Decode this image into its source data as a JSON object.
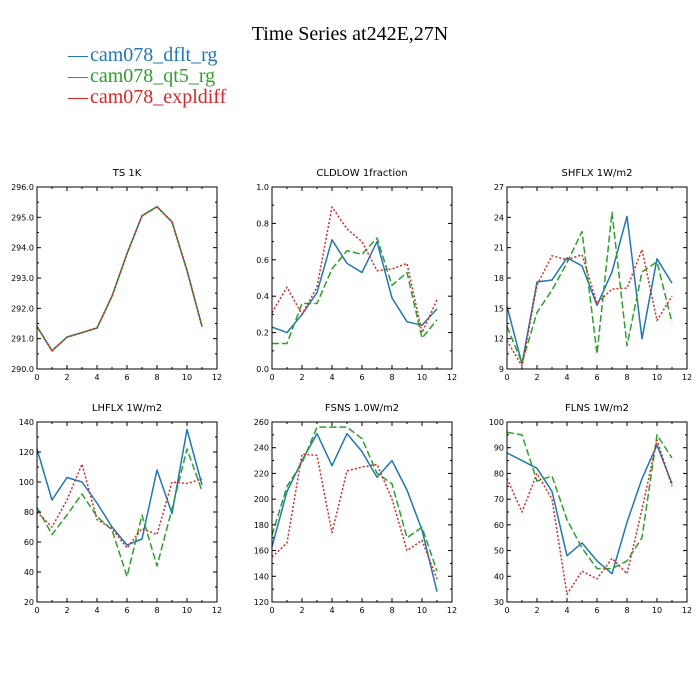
{
  "page": {
    "title": "Time Series at242E,27N",
    "legend": [
      {
        "dash": "—",
        "label": "cam078_dflt_rg",
        "color": "#1f77b4"
      },
      {
        "dash": "—",
        "label": "cam078_qt5_rg",
        "color": "#2ca02c"
      },
      {
        "dash": "—",
        "label": "cam078_expldiff",
        "color": "#d62728"
      }
    ]
  },
  "chart_data": [
    {
      "type": "line",
      "title": "TS   1K",
      "xlim": [
        0,
        12
      ],
      "ylim": [
        290,
        296
      ],
      "xticks": [
        0,
        2,
        4,
        6,
        8,
        10,
        12
      ],
      "yticks": [
        290,
        291,
        292,
        293,
        294,
        295,
        296
      ],
      "ytick_labels": [
        "290.0",
        "291.0",
        "292.0",
        "293.0",
        "294.0",
        "295.0",
        "296.0"
      ],
      "grid": false,
      "x": [
        0,
        1,
        2,
        3,
        4,
        5,
        6,
        7,
        8,
        9,
        10,
        11
      ],
      "series": [
        {
          "name": "cam078_dflt_rg",
          "color": "#1f77b4",
          "dash": "solid",
          "values": [
            291.4,
            290.6,
            291.05,
            291.2,
            291.35,
            292.4,
            293.8,
            295.05,
            295.35,
            294.85,
            293.25,
            291.4
          ]
        },
        {
          "name": "cam078_qt5_rg",
          "color": "#2ca02c",
          "dash": "longdash",
          "values": [
            291.4,
            290.6,
            291.05,
            291.2,
            291.35,
            292.4,
            293.8,
            295.05,
            295.35,
            294.85,
            293.25,
            291.4
          ]
        },
        {
          "name": "cam078_expldiff",
          "color": "#d62728",
          "dash": "dotted",
          "values": [
            291.4,
            290.6,
            291.05,
            291.2,
            291.35,
            292.4,
            293.8,
            295.05,
            295.35,
            294.85,
            293.25,
            291.4
          ]
        }
      ]
    },
    {
      "type": "line",
      "title": "CLDLOW   1fraction",
      "xlim": [
        0,
        12
      ],
      "ylim": [
        0,
        1
      ],
      "xticks": [
        0,
        2,
        4,
        6,
        8,
        10,
        12
      ],
      "yticks": [
        0,
        0.2,
        0.4,
        0.6,
        0.8,
        1.0
      ],
      "ytick_labels": [
        "0.0",
        "0.2",
        "0.4",
        "0.6",
        "0.8",
        "1.0"
      ],
      "grid": false,
      "x": [
        0,
        1,
        2,
        3,
        4,
        5,
        6,
        7,
        8,
        9,
        10,
        11
      ],
      "series": [
        {
          "name": "cam078_dflt_rg",
          "color": "#1f77b4",
          "dash": "solid",
          "values": [
            0.23,
            0.2,
            0.3,
            0.42,
            0.71,
            0.58,
            0.53,
            0.7,
            0.39,
            0.26,
            0.24,
            0.33
          ]
        },
        {
          "name": "cam078_qt5_rg",
          "color": "#2ca02c",
          "dash": "longdash",
          "values": [
            0.14,
            0.14,
            0.36,
            0.36,
            0.55,
            0.65,
            0.63,
            0.72,
            0.46,
            0.53,
            0.17,
            0.27
          ]
        },
        {
          "name": "cam078_expldiff",
          "color": "#d62728",
          "dash": "dotted",
          "values": [
            0.31,
            0.45,
            0.3,
            0.45,
            0.89,
            0.77,
            0.7,
            0.54,
            0.55,
            0.58,
            0.2,
            0.38
          ]
        }
      ]
    },
    {
      "type": "line",
      "title": "SHFLX   1W/m2",
      "xlim": [
        0,
        12
      ],
      "ylim": [
        9,
        27
      ],
      "xticks": [
        0,
        2,
        4,
        6,
        8,
        10,
        12
      ],
      "yticks": [
        9,
        12,
        15,
        18,
        21,
        24,
        27
      ],
      "ytick_labels": [
        "9",
        "12",
        "15",
        "18",
        "21",
        "24",
        "27"
      ],
      "grid": false,
      "x": [
        0,
        1,
        2,
        3,
        4,
        5,
        6,
        7,
        8,
        9,
        10,
        11
      ],
      "series": [
        {
          "name": "cam078_dflt_rg",
          "color": "#1f77b4",
          "dash": "solid",
          "values": [
            15.2,
            9.5,
            17.6,
            17.8,
            20.0,
            19.2,
            15.3,
            18.6,
            24.1,
            12.0,
            19.9,
            17.5
          ]
        },
        {
          "name": "cam078_qt5_rg",
          "color": "#2ca02c",
          "dash": "longdash",
          "values": [
            13.2,
            9.6,
            14.6,
            16.8,
            19.5,
            22.6,
            10.5,
            24.5,
            11.3,
            18.6,
            19.6,
            13.6
          ]
        },
        {
          "name": "cam078_expldiff",
          "color": "#d62728",
          "dash": "dotted",
          "values": [
            11.8,
            9.3,
            17.3,
            20.2,
            19.8,
            20.3,
            15.5,
            16.9,
            17.0,
            20.8,
            13.8,
            16.2
          ]
        }
      ]
    },
    {
      "type": "line",
      "title": "LHFLX   1W/m2",
      "xlim": [
        0,
        12
      ],
      "ylim": [
        20,
        140
      ],
      "xticks": [
        0,
        2,
        4,
        6,
        8,
        10,
        12
      ],
      "yticks": [
        20,
        40,
        60,
        80,
        100,
        120,
        140
      ],
      "ytick_labels": [
        "20",
        "40",
        "60",
        "80",
        "100",
        "120",
        "140"
      ],
      "grid": false,
      "x": [
        0,
        1,
        2,
        3,
        4,
        5,
        6,
        7,
        8,
        9,
        10,
        11
      ],
      "series": [
        {
          "name": "cam078_dflt_rg",
          "color": "#1f77b4",
          "dash": "solid",
          "values": [
            122,
            88,
            103,
            100,
            86,
            70,
            58,
            62,
            108,
            79,
            135,
            98
          ]
        },
        {
          "name": "cam078_qt5_rg",
          "color": "#2ca02c",
          "dash": "longdash",
          "values": [
            83,
            65,
            78,
            92,
            77,
            68,
            37,
            78,
            44,
            82,
            122,
            94
          ]
        },
        {
          "name": "cam078_expldiff",
          "color": "#d62728",
          "dash": "dotted",
          "values": [
            80,
            70,
            88,
            112,
            75,
            69,
            56,
            69,
            65,
            100,
            99,
            102
          ]
        }
      ]
    },
    {
      "type": "line",
      "title": "FSNS   1.0W/m2",
      "xlim": [
        0,
        12
      ],
      "ylim": [
        120,
        260
      ],
      "xticks": [
        0,
        2,
        4,
        6,
        8,
        10,
        12
      ],
      "yticks": [
        120,
        140,
        160,
        180,
        200,
        220,
        240,
        260
      ],
      "ytick_labels": [
        "120",
        "140",
        "160",
        "180",
        "200",
        "220",
        "240",
        "260"
      ],
      "grid": false,
      "x": [
        0,
        1,
        2,
        3,
        4,
        5,
        6,
        7,
        8,
        9,
        10,
        11
      ],
      "series": [
        {
          "name": "cam078_dflt_rg",
          "color": "#1f77b4",
          "dash": "solid",
          "values": [
            163,
            206,
            230,
            251,
            226,
            251,
            237,
            217,
            230,
            207,
            176,
            128
          ]
        },
        {
          "name": "cam078_qt5_rg",
          "color": "#2ca02c",
          "dash": "longdash",
          "values": [
            172,
            210,
            228,
            256,
            256,
            256,
            247,
            220,
            212,
            170,
            178,
            144
          ]
        },
        {
          "name": "cam078_expldiff",
          "color": "#d62728",
          "dash": "dotted",
          "values": [
            155,
            166,
            235,
            234,
            174,
            222,
            225,
            227,
            200,
            160,
            168,
            138
          ]
        }
      ]
    },
    {
      "type": "line",
      "title": "FLNS   1W/m2",
      "xlim": [
        0,
        12
      ],
      "ylim": [
        30,
        100
      ],
      "xticks": [
        0,
        2,
        4,
        6,
        8,
        10,
        12
      ],
      "yticks": [
        30,
        40,
        50,
        60,
        70,
        80,
        90,
        100
      ],
      "ytick_labels": [
        "30",
        "40",
        "50",
        "60",
        "70",
        "80",
        "90",
        "100"
      ],
      "grid": false,
      "x": [
        0,
        1,
        2,
        3,
        4,
        5,
        6,
        7,
        8,
        9,
        10,
        11
      ],
      "series": [
        {
          "name": "cam078_dflt_rg",
          "color": "#1f77b4",
          "dash": "solid",
          "values": [
            88,
            85,
            82,
            73,
            48,
            53,
            46,
            41,
            61,
            78,
            91,
            76
          ]
        },
        {
          "name": "cam078_qt5_rg",
          "color": "#2ca02c",
          "dash": "longdash",
          "values": [
            96,
            95,
            77,
            79,
            62,
            51,
            43,
            43,
            46,
            55,
            95,
            86
          ]
        },
        {
          "name": "cam078_expldiff",
          "color": "#d62728",
          "dash": "dotted",
          "values": [
            78,
            65,
            80,
            70,
            33,
            42,
            39,
            47,
            41,
            66,
            93,
            75
          ]
        }
      ]
    }
  ]
}
